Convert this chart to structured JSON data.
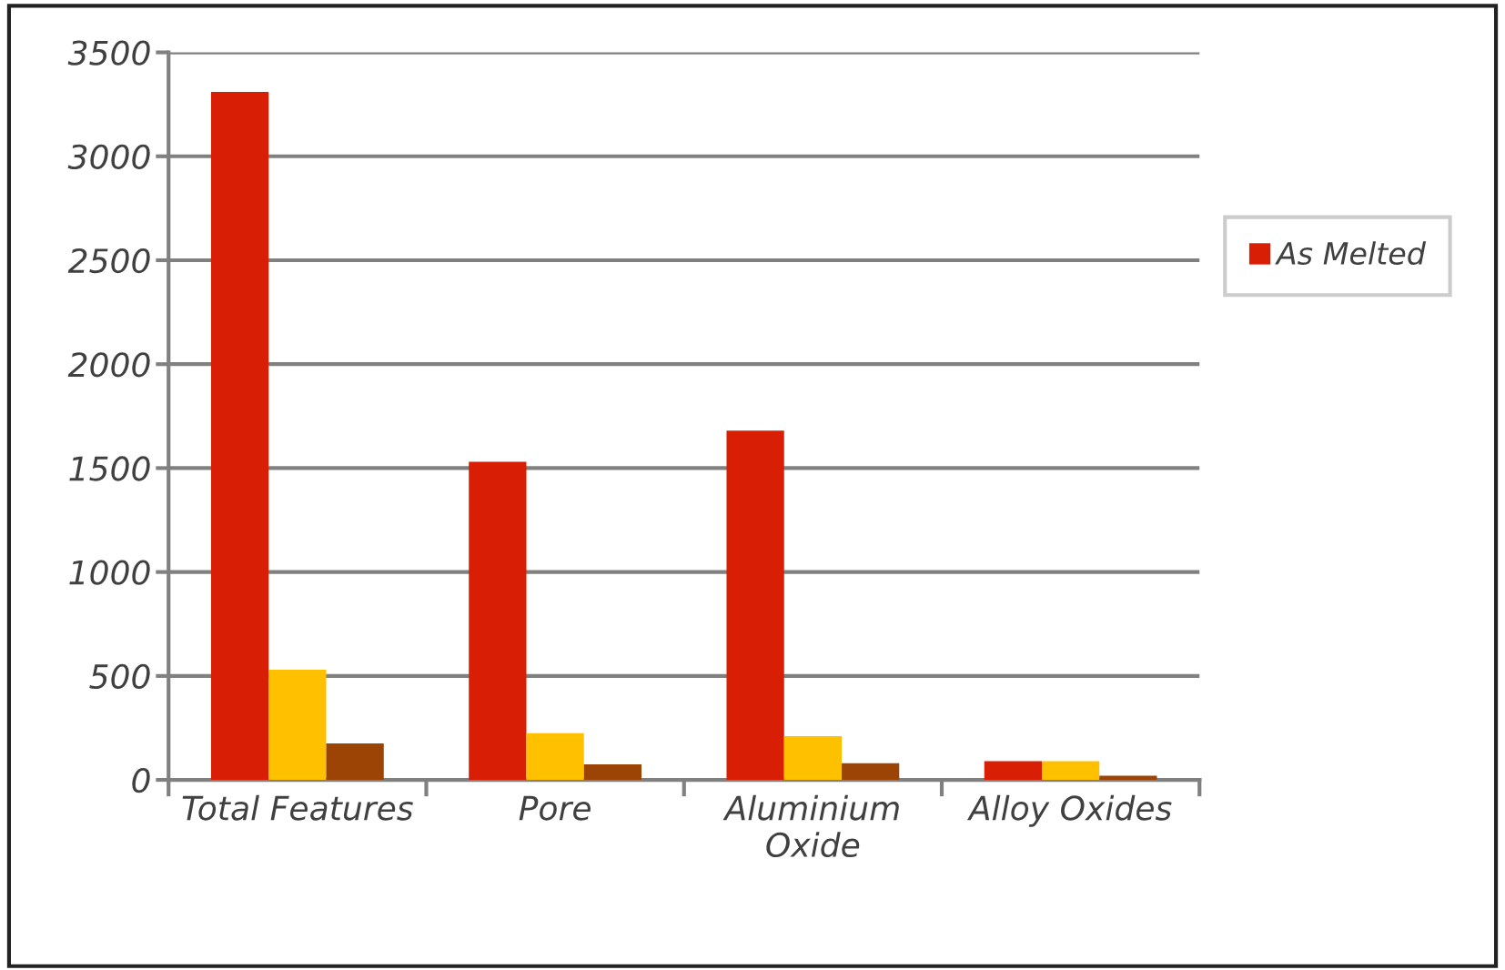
{
  "chart_data": {
    "type": "bar",
    "categories": [
      "Total Features",
      "Pore",
      "Aluminium\nOxide",
      "Alloy Oxides"
    ],
    "series": [
      {
        "name": "As Melted",
        "color": "#d81e05",
        "values": [
          3310,
          1530,
          1680,
          90
        ]
      },
      {
        "color": "#ffc000",
        "values": [
          530,
          225,
          210,
          90
        ]
      },
      {
        "color": "#9c4306",
        "values": [
          175,
          75,
          80,
          20
        ]
      }
    ],
    "ylim": [
      0,
      3500
    ],
    "yticks": [
      0,
      500,
      1000,
      1500,
      2000,
      2500,
      3000,
      3500
    ],
    "grid": "y",
    "legend": "right"
  }
}
